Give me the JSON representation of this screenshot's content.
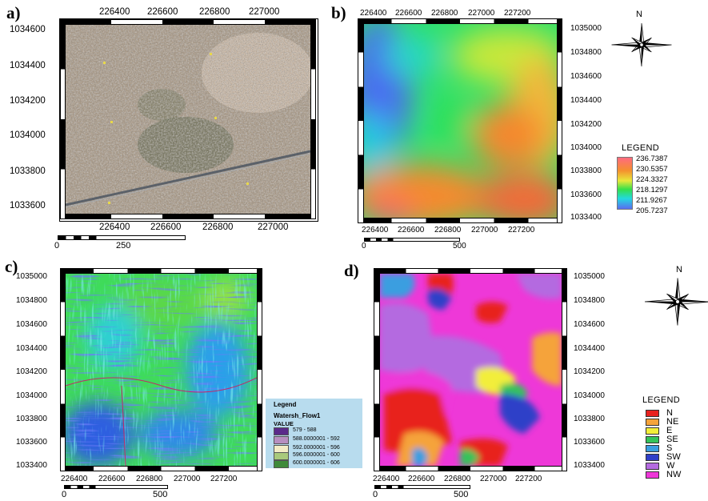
{
  "panels": {
    "a": {
      "label": "a)",
      "top_ticks": [
        "226400",
        "226600",
        "226800",
        "227000"
      ],
      "bottom_ticks": [
        "226400",
        "226600",
        "226800",
        "227000"
      ],
      "left_ticks": [
        "1034600",
        "1034400",
        "1034200",
        "1034000",
        "1033800",
        "1033600"
      ],
      "scale_labels": [
        "0",
        "250"
      ]
    },
    "b": {
      "label": "b)",
      "top_ticks": [
        "226400",
        "226600",
        "226800",
        "227000",
        "227200"
      ],
      "bottom_ticks": [
        "226400",
        "226600",
        "226800",
        "227000",
        "227200"
      ],
      "right_ticks": [
        "1035000",
        "1034800",
        "1034600",
        "1034400",
        "1034200",
        "1034000",
        "1033800",
        "1033600",
        "1033400"
      ],
      "scale_labels": [
        "0",
        "500"
      ],
      "north": "N",
      "legend_title": "LEGEND",
      "legend_values": [
        "236.7387",
        "230.5357",
        "224.3327",
        "218.1297",
        "211.9267",
        "205.7237"
      ]
    },
    "c": {
      "label": "c)",
      "bottom_ticks": [
        "226400",
        "226600",
        "226800",
        "227000",
        "227200"
      ],
      "left_ticks": [
        "1035000",
        "1034800",
        "1034600",
        "1034400",
        "1034200",
        "1034000",
        "1033800",
        "1033600",
        "1033400"
      ],
      "scale_labels": [
        "0",
        "500"
      ],
      "legend": {
        "title": "Legend",
        "layer": "Watersh_Flow1",
        "field": "VALUE",
        "items": [
          {
            "label": "579 - 588",
            "color": "#5a2a8a"
          },
          {
            "label": "588.0000001 - 592",
            "color": "#b78fc0"
          },
          {
            "label": "592.0000001 - 596",
            "color": "#f3ecc5"
          },
          {
            "label": "596.0000001 - 600",
            "color": "#a9c97c"
          },
          {
            "label": "600.0000001 - 606",
            "color": "#3f8a3a"
          }
        ]
      }
    },
    "d": {
      "label": "d)",
      "bottom_ticks": [
        "226400",
        "226600",
        "226800",
        "227000",
        "227200"
      ],
      "right_ticks": [
        "1035000",
        "1034800",
        "1034600",
        "1034400",
        "1034200",
        "1034000",
        "1033800",
        "1033600",
        "1033400"
      ],
      "scale_labels": [
        "0",
        "500"
      ],
      "north": "N",
      "legend_title": "LEGEND",
      "legend_items": [
        {
          "label": "N",
          "color": "#e8221f"
        },
        {
          "label": "NE",
          "color": "#f5a33a"
        },
        {
          "label": "E",
          "color": "#f2ee3a"
        },
        {
          "label": "SE",
          "color": "#35c35a"
        },
        {
          "label": "S",
          "color": "#3a9ee0"
        },
        {
          "label": "SW",
          "color": "#2f3fc8"
        },
        {
          "label": "W",
          "color": "#b46be0"
        },
        {
          "label": "NW",
          "color": "#ee38d8"
        }
      ]
    }
  },
  "colors": {
    "elev_ramp": [
      "#ff6a70",
      "#f58a2e",
      "#e8e63a",
      "#34e04a",
      "#23d9e0",
      "#4a6cf0"
    ],
    "legend_bg_c": "#b8dcee"
  },
  "icons": [
    "compass-rose-icon"
  ]
}
